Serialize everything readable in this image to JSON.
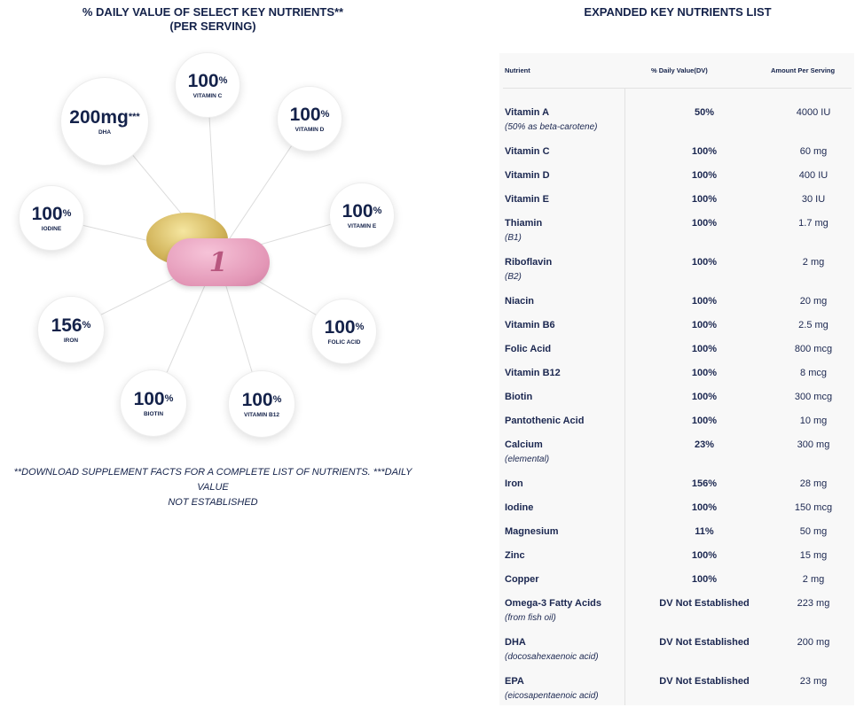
{
  "left": {
    "title_line1": "% DAILY VALUE OF SELECT KEY NUTRIENTS**",
    "title_line2": "(PER SERVING)",
    "pill_mark": "1",
    "bubbles": [
      {
        "value": "100",
        "unit": "%",
        "label": "VITAMIN C"
      },
      {
        "value": "200mg",
        "unit": "***",
        "label": "DHA"
      },
      {
        "value": "100",
        "unit": "%",
        "label": "VITAMIN D"
      },
      {
        "value": "100",
        "unit": "%",
        "label": "IODINE"
      },
      {
        "value": "100",
        "unit": "%",
        "label": "VITAMIN E"
      },
      {
        "value": "156",
        "unit": "%",
        "label": "IRON"
      },
      {
        "value": "100",
        "unit": "%",
        "label": "FOLIC ACID"
      },
      {
        "value": "100",
        "unit": "%",
        "label": "BIOTIN"
      },
      {
        "value": "100",
        "unit": "%",
        "label": "VITAMIN B12"
      }
    ],
    "footnote_line1": "**Download supplement facts for a complete list of nutrients. ***Daily value",
    "footnote_line2": "not established"
  },
  "right": {
    "title": "EXPANDED KEY NUTRIENTS LIST",
    "headers": {
      "nutrient": "Nutrient",
      "dv": "% Daily Value(DV)",
      "amount": "Amount Per Serving"
    },
    "rows": [
      {
        "name": "Vitamin A",
        "sub": "(50% as beta-carotene)",
        "dv": "50%",
        "amount": "4000 IU"
      },
      {
        "name": "Vitamin C",
        "dv": "100%",
        "amount": "60 mg"
      },
      {
        "name": "Vitamin D",
        "dv": "100%",
        "amount": "400 IU"
      },
      {
        "name": "Vitamin E",
        "dv": "100%",
        "amount": "30 IU"
      },
      {
        "name": "Thiamin",
        "sub": "(B1)",
        "dv": "100%",
        "amount": "1.7 mg"
      },
      {
        "name": "Riboflavin",
        "sub": "(B2)",
        "dv": "100%",
        "amount": "2 mg"
      },
      {
        "name": "Niacin",
        "dv": "100%",
        "amount": "20 mg"
      },
      {
        "name": "Vitamin B6",
        "dv": "100%",
        "amount": "2.5 mg"
      },
      {
        "name": "Folic Acid",
        "dv": "100%",
        "amount": "800 mcg"
      },
      {
        "name": "Vitamin B12",
        "dv": "100%",
        "amount": "8 mcg"
      },
      {
        "name": "Biotin",
        "dv": "100%",
        "amount": "300 mcg"
      },
      {
        "name": "Pantothenic Acid",
        "dv": "100%",
        "amount": "10 mg"
      },
      {
        "name": "Calcium",
        "sub": "(elemental)",
        "dv": "23%",
        "amount": "300 mg"
      },
      {
        "name": "Iron",
        "dv": "156%",
        "amount": "28 mg"
      },
      {
        "name": "Iodine",
        "dv": "100%",
        "amount": "150 mcg"
      },
      {
        "name": "Magnesium",
        "dv": "11%",
        "amount": "50 mg"
      },
      {
        "name": "Zinc",
        "dv": "100%",
        "amount": "15 mg"
      },
      {
        "name": "Copper",
        "dv": "100%",
        "amount": "2 mg"
      },
      {
        "name": "Omega-3 Fatty Acids",
        "sub": "(from fish oil)",
        "dv": "DV Not Established",
        "amount": "223 mg"
      },
      {
        "name": "DHA",
        "sub": "(docosahexaenoic acid)",
        "dv": "DV Not Established",
        "amount": "200 mg"
      },
      {
        "name": "EPA",
        "sub": "(eicosapentaenoic acid)",
        "dv": "DV Not Established",
        "amount": "23 mg"
      }
    ]
  }
}
